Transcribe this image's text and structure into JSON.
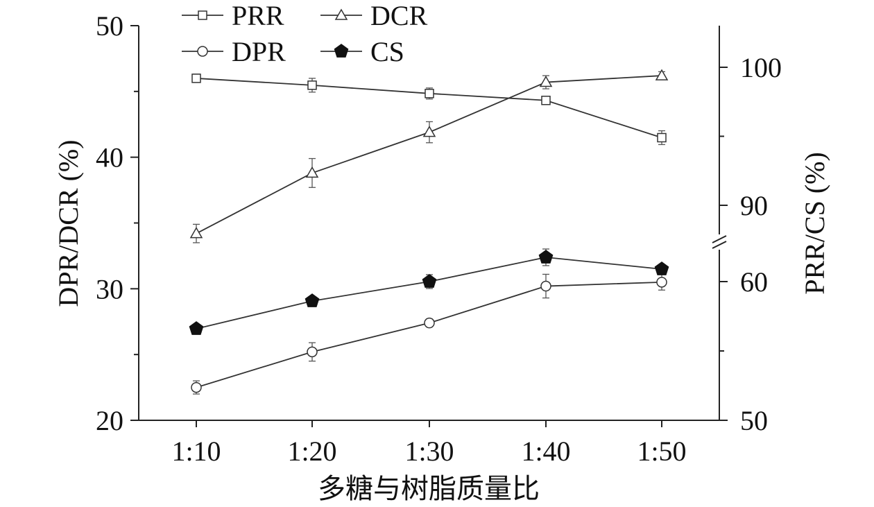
{
  "chart_data": {
    "type": "line",
    "xlabel": "多糖与树脂质量比",
    "ylabel_left": "DPR/DCR (%)",
    "ylabel_right": "PRR/CS (%)",
    "categories": [
      "1:10",
      "1:20",
      "1:30",
      "1:40",
      "1:50"
    ],
    "left_axis": {
      "ticks": [
        20,
        30,
        40,
        50
      ],
      "ylim": [
        20,
        50
      ]
    },
    "right_axis": {
      "ticks": [
        50,
        60,
        90,
        100
      ],
      "broken": true,
      "lower_range": [
        50,
        64
      ],
      "upper_range": [
        86.5,
        103
      ]
    },
    "legend": {
      "placement": "top-left",
      "entries": [
        "PRR",
        "DCR",
        "DPR",
        "CS"
      ]
    },
    "series": [
      {
        "name": "PRR",
        "axis": "right",
        "marker": "square",
        "values": [
          99.2,
          98.7,
          98.1,
          97.6,
          94.9
        ],
        "errors": [
          0.3,
          0.5,
          0.4,
          0.2,
          0.5
        ]
      },
      {
        "name": "DCR",
        "axis": "left",
        "marker": "triangle",
        "values": [
          34.2,
          38.8,
          41.9,
          45.7,
          46.2
        ],
        "errors": [
          0.7,
          1.1,
          0.8,
          0.5,
          0.3
        ]
      },
      {
        "name": "DPR",
        "axis": "left",
        "marker": "circle",
        "values": [
          22.5,
          25.2,
          27.4,
          30.2,
          30.5
        ],
        "errors": [
          0.5,
          0.7,
          0.3,
          0.9,
          0.6
        ]
      },
      {
        "name": "CS",
        "axis": "right",
        "marker": "pentagon-filled",
        "values": [
          56.6,
          58.6,
          60.0,
          61.75,
          60.9
        ],
        "errors": [
          0.3,
          0.3,
          0.5,
          0.6,
          0.3
        ]
      }
    ]
  }
}
